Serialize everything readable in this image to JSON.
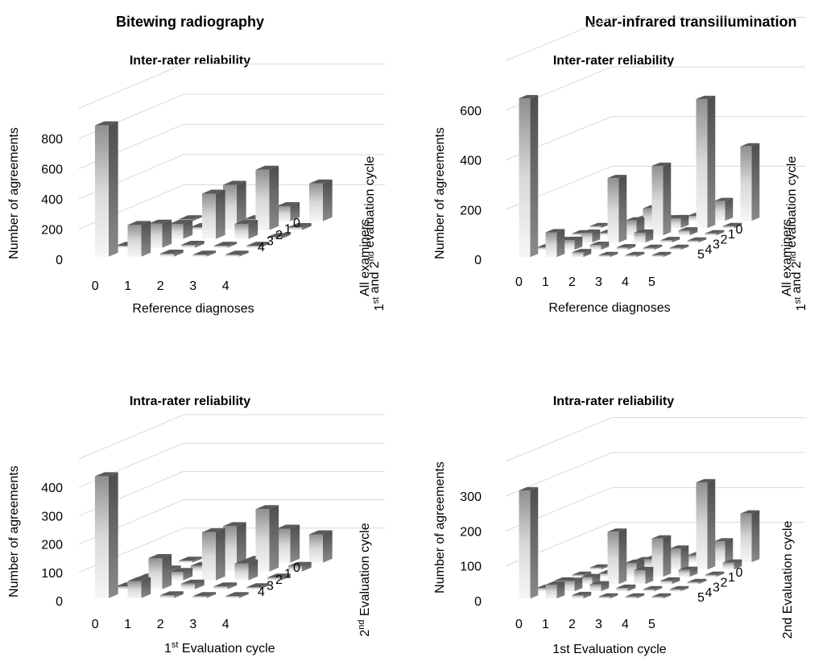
{
  "sections": [
    {
      "title": "Bitewing radiography"
    },
    {
      "title": "Near-infrared transillumination"
    }
  ],
  "chart_data": [
    {
      "type": "bar3d",
      "title": "Inter-rater reliability",
      "ylabel": "Number of agreements",
      "xlabel": "Reference diagnoses",
      "zlabel_lines": [
        "All examiners",
        "1st and 2nd evaluation cycle"
      ],
      "x_categories": [
        "0",
        "1",
        "2",
        "3",
        "4"
      ],
      "z_categories": [
        "0",
        "1",
        "2",
        "3",
        "4"
      ],
      "yticks": [
        0,
        200,
        400,
        600,
        800
      ],
      "ylim": [
        0,
        1000
      ],
      "grid": true,
      "values": [
        [
          870,
          210,
          20,
          0,
          0
        ],
        [
          10,
          160,
          20,
          10,
          0
        ],
        [
          10,
          100,
          300,
          100,
          10
        ],
        [
          10,
          20,
          300,
          400,
          20
        ],
        [
          0,
          10,
          10,
          100,
          250
        ]
      ]
    },
    {
      "type": "bar3d",
      "title": "Inter-rater reliability",
      "ylabel": "Number of agreements",
      "xlabel": "Reference diagnoses",
      "zlabel_lines": [
        "All examiners",
        "1st and 2nd evaluation cycle"
      ],
      "x_categories": [
        "0",
        "1",
        "2",
        "3",
        "4",
        "5"
      ],
      "z_categories": [
        "0",
        "1",
        "2",
        "3",
        "4",
        "5"
      ],
      "yticks": [
        0,
        200,
        400,
        600
      ],
      "ylim": [
        0,
        800
      ],
      "grid": true,
      "values": [
        [
          640,
          100,
          20,
          0,
          0,
          0
        ],
        [
          10,
          40,
          20,
          10,
          0,
          0
        ],
        [
          10,
          40,
          260,
          40,
          10,
          0
        ],
        [
          0,
          10,
          60,
          280,
          20,
          0
        ],
        [
          0,
          10,
          80,
          40,
          520,
          0
        ],
        [
          0,
          0,
          10,
          20,
          80,
          300
        ]
      ]
    },
    {
      "type": "bar3d",
      "title": "Intra-rater reliability",
      "ylabel": "Number of agreements",
      "xlabel_lines": [
        "1",
        "st",
        " Evaluation cycle"
      ],
      "zlabel_lines": [
        "2",
        "nd",
        " Evaluation cycle"
      ],
      "x_categories": [
        "0",
        "1",
        "2",
        "3",
        "4"
      ],
      "z_categories": [
        "0",
        "1",
        "2",
        "3",
        "4"
      ],
      "yticks": [
        0,
        100,
        200,
        300,
        400
      ],
      "ylim": [
        0,
        500
      ],
      "grid": true,
      "values": [
        [
          430,
          60,
          10,
          0,
          0
        ],
        [
          10,
          110,
          20,
          10,
          0
        ],
        [
          10,
          30,
          170,
          60,
          10
        ],
        [
          0,
          20,
          160,
          220,
          20
        ],
        [
          0,
          10,
          10,
          120,
          100
        ]
      ]
    },
    {
      "type": "bar3d",
      "title": "Intra-rater reliability",
      "ylabel": "Number of agreements",
      "xlabel": "1st Evaluation cycle",
      "zlabel": "2nd Evaluation cycle",
      "x_categories": [
        "0",
        "1",
        "2",
        "3",
        "4",
        "5"
      ],
      "z_categories": [
        "0",
        "1",
        "2",
        "3",
        "4",
        "5"
      ],
      "yticks": [
        0,
        100,
        200,
        300
      ],
      "ylim": [
        0,
        400
      ],
      "grid": true,
      "values": [
        [
          310,
          40,
          10,
          0,
          0,
          0
        ],
        [
          10,
          30,
          20,
          10,
          0,
          0
        ],
        [
          10,
          20,
          150,
          40,
          10,
          0
        ],
        [
          0,
          10,
          40,
          110,
          20,
          0
        ],
        [
          0,
          10,
          30,
          60,
          250,
          20
        ],
        [
          0,
          0,
          10,
          20,
          60,
          140
        ]
      ]
    }
  ]
}
